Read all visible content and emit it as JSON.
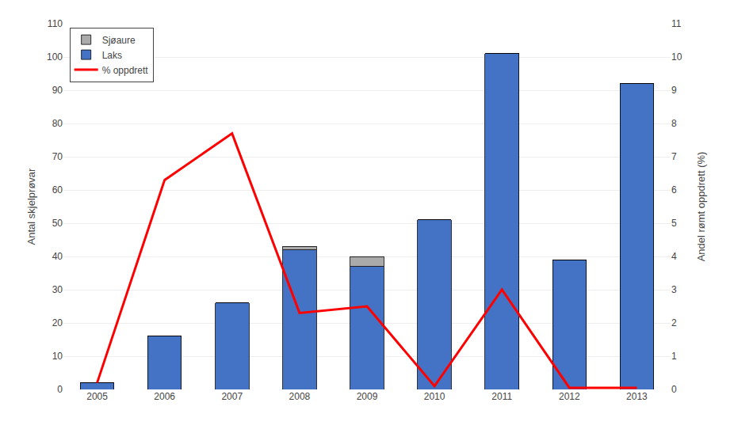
{
  "chart_data": {
    "type": "bar",
    "stacked": true,
    "categories": [
      "2005",
      "2006",
      "2007",
      "2008",
      "2009",
      "2010",
      "2011",
      "2012",
      "2013"
    ],
    "series": [
      {
        "name": "Laks",
        "type": "bar",
        "color": "#4472C4",
        "values": [
          2,
          16,
          26,
          42,
          37,
          51,
          101,
          39,
          92
        ]
      },
      {
        "name": "Sjøaure",
        "type": "bar",
        "color": "#AAAAAA",
        "values": [
          0,
          0,
          0,
          1,
          3,
          0,
          0,
          0,
          0
        ]
      },
      {
        "name": "% oppdrett",
        "type": "line",
        "axis": "y2",
        "color": "#FF0000",
        "values": [
          0.2,
          6.3,
          7.7,
          2.3,
          2.5,
          0.1,
          3.0,
          0.05,
          0.05
        ]
      }
    ],
    "ylabel": "Antal skjelprøvar",
    "y2label": "Andel rømt oppdrett (%)",
    "ylim": [
      0,
      110
    ],
    "yticks": [
      0,
      10,
      20,
      30,
      40,
      50,
      60,
      70,
      80,
      90,
      100,
      110
    ],
    "y2lim": [
      0,
      11
    ],
    "y2ticks": [
      0,
      1,
      2,
      3,
      4,
      5,
      6,
      7,
      8,
      9,
      10,
      11
    ],
    "grid": true,
    "legend": "upper left"
  }
}
